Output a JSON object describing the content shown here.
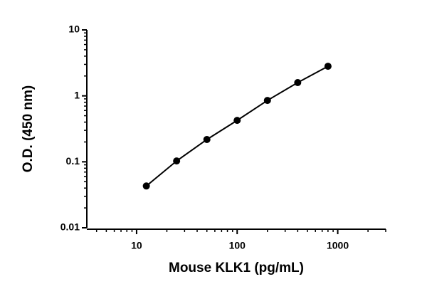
{
  "chart_data": {
    "type": "line",
    "x_label": "Mouse KLK1 (pg/mL)",
    "y_label": "O.D. (450 nm)",
    "x": [
      12.5,
      25,
      50,
      100,
      200,
      400,
      800
    ],
    "series": [
      {
        "color": "#000000",
        "values": [
          0.043,
          0.103,
          0.218,
          0.425,
          0.853,
          1.59,
          2.81
        ]
      }
    ],
    "xlim": [
      3.2,
      3000
    ],
    "ylim": [
      0.01,
      10
    ],
    "xticks": [
      10,
      100,
      1000
    ],
    "yticks": [
      0.01,
      0.1,
      1,
      10
    ],
    "xminorticks": [
      4,
      5,
      6,
      7,
      8,
      9,
      20,
      30,
      40,
      50,
      60,
      70,
      80,
      90,
      200,
      300,
      400,
      500,
      600,
      700,
      800,
      900,
      2000,
      3000
    ],
    "yminorticks": [
      0.02,
      0.03,
      0.04,
      0.05,
      0.06,
      0.07,
      0.08,
      0.09,
      0.2,
      0.3,
      0.4,
      0.5,
      0.6,
      0.7,
      0.8,
      0.9,
      2,
      3,
      4,
      5,
      6,
      7,
      8,
      9
    ],
    "xscale": "log",
    "yscale": "log",
    "grid": false
  }
}
